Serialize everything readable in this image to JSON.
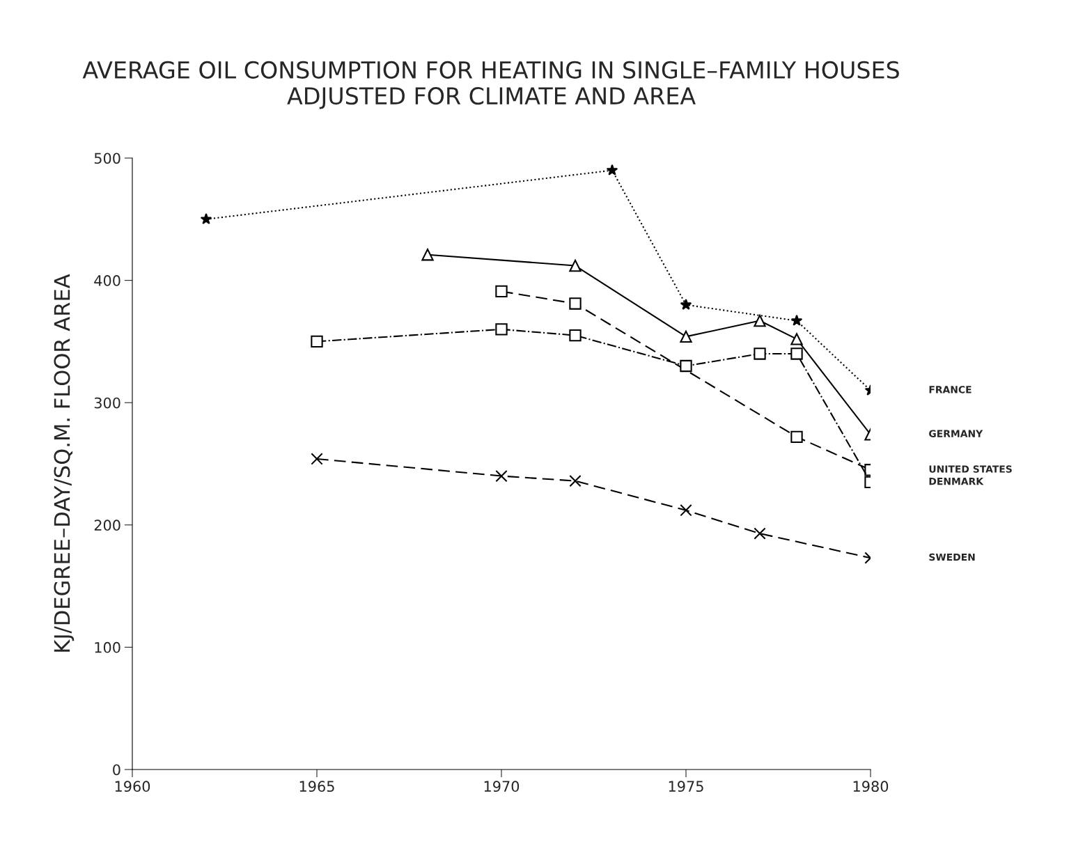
{
  "chart_data": {
    "type": "line",
    "title": "AVERAGE OIL CONSUMPTION FOR HEATING IN SINGLE–FAMILY HOUSES\nADJUSTED FOR CLIMATE AND AREA",
    "ylabel": "KJ/DEGREE–DAY/SQ.M. FLOOR AREA",
    "xlim": [
      1960,
      1980
    ],
    "xticks": [
      1960,
      1965,
      1970,
      1975,
      1980
    ],
    "ylim": [
      0,
      500
    ],
    "yticks": [
      0,
      100,
      200,
      300,
      400,
      500
    ],
    "grid": false,
    "legend": false,
    "series": [
      {
        "name": "FRANCE",
        "color": "#000000",
        "marker": "star",
        "line_style": "dotted",
        "x": [
          1962,
          1973,
          1975,
          1978,
          1980
        ],
        "values": [
          450,
          490,
          380,
          367,
          310
        ]
      },
      {
        "name": "GERMANY",
        "color": "#000000",
        "marker": "triangle",
        "line_style": "solid",
        "x": [
          1968,
          1972,
          1975,
          1977,
          1978,
          1980
        ],
        "values": [
          421,
          412,
          354,
          367,
          352,
          274
        ]
      },
      {
        "name": "UNITED STATES",
        "color": "#000000",
        "marker": "square",
        "line_style": "dashed",
        "x": [
          1970,
          1972,
          1978,
          1980
        ],
        "values": [
          391,
          381,
          272,
          245
        ]
      },
      {
        "name": "DENMARK",
        "color": "#000000",
        "marker": "square",
        "line_style": "dashdot",
        "x": [
          1965,
          1970,
          1972,
          1975,
          1977,
          1978,
          1980
        ],
        "values": [
          350,
          360,
          355,
          330,
          340,
          340,
          235
        ]
      },
      {
        "name": "SWEDEN",
        "color": "#000000",
        "marker": "cross",
        "line_style": "dashed",
        "x": [
          1965,
          1970,
          1972,
          1975,
          1977,
          1980
        ],
        "values": [
          254,
          240,
          236,
          212,
          193,
          173
        ]
      }
    ]
  }
}
